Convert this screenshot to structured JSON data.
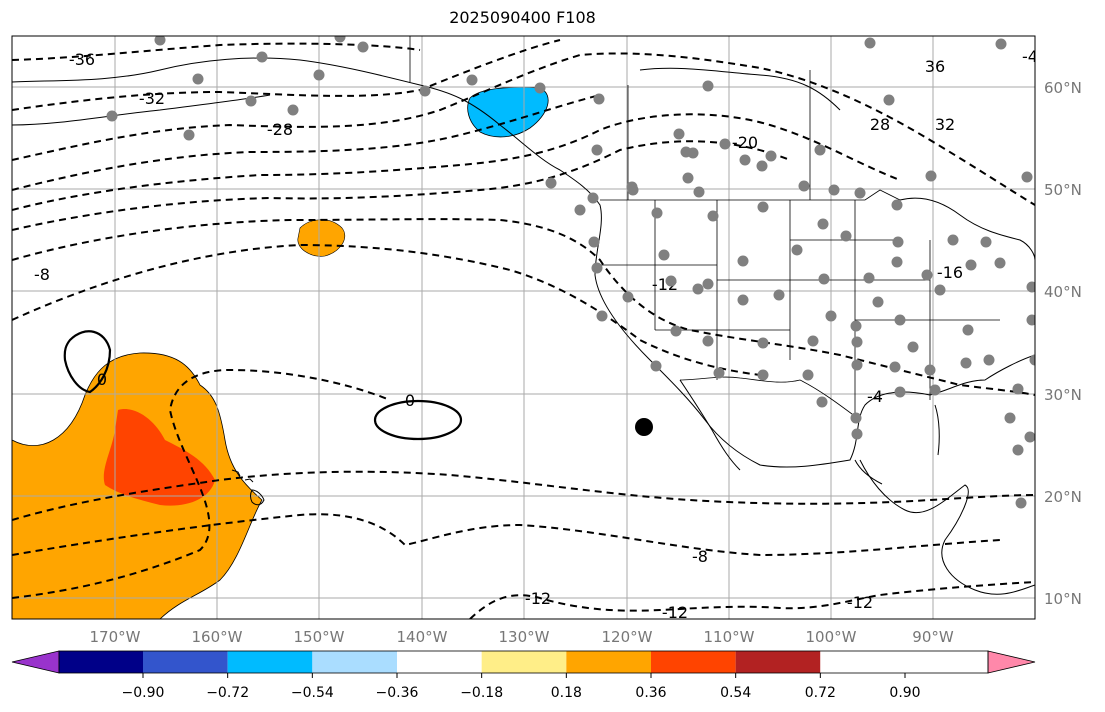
{
  "title": "2025090400 F108",
  "map": {
    "lon_range": [
      -180,
      -80
    ],
    "lat_range": [
      8,
      65
    ],
    "lon_ticks": [
      "170°W",
      "160°W",
      "150°W",
      "140°W",
      "130°W",
      "120°W",
      "110°W",
      "100°W",
      "90°W"
    ],
    "lat_ticks": [
      "60°N",
      "50°N",
      "40°N",
      "30°N",
      "20°N",
      "10°N"
    ],
    "contour_labels": [
      "-36",
      "-32",
      "-28",
      "-20",
      "-12",
      "-8",
      "0",
      "0",
      "-8",
      "-12",
      "-12",
      "-12",
      "-16",
      "-4",
      "36",
      "28",
      "32",
      "-4"
    ],
    "marker": "current-location-dot"
  },
  "colorbar": {
    "ticks": [
      "−0.90",
      "−0.72",
      "−0.54",
      "−0.36",
      "−0.18",
      "0.18",
      "0.36",
      "0.54",
      "0.72",
      "0.90"
    ],
    "colors": [
      "#9933cc",
      "#000088",
      "#3355cc",
      "#00bbff",
      "#aaddff",
      "#ffffff",
      "#ffee88",
      "#ffa500",
      "#ff4400",
      "#b22222",
      "#ff88aa"
    ]
  }
}
